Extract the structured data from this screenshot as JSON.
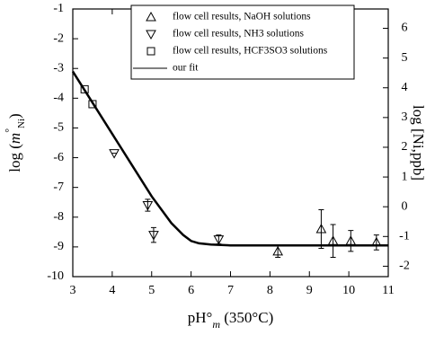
{
  "chart_data": {
    "type": "scatter",
    "x_label": [
      "pH°",
      "m",
      " (350°C)"
    ],
    "y_label": [
      "log (",
      "m",
      "°",
      "Ni",
      ")"
    ],
    "y2_label": "log [Ni,ppb]",
    "xlim": [
      3,
      11
    ],
    "xticks": [
      3,
      4,
      5,
      6,
      7,
      8,
      9,
      10,
      11
    ],
    "ylim": [
      -10,
      -1
    ],
    "yticks": [
      -10,
      -9,
      -8,
      -7,
      -6,
      -5,
      -4,
      -3,
      -2,
      -1
    ],
    "y2lim": [
      -2.35,
      6.65
    ],
    "y2ticks": [
      -2,
      -1,
      0,
      1,
      2,
      3,
      4,
      5,
      6
    ],
    "legend": "top-right",
    "series": [
      {
        "name": "flow cell results, NaOH solutions",
        "marker": "triangle-up",
        "color": "#000000",
        "x": [
          8.2,
          9.3,
          9.6,
          10.05,
          10.7
        ],
        "values": [
          -9.15,
          -8.4,
          -8.8,
          -8.8,
          -8.85
        ],
        "errors": [
          0.2,
          0.65,
          0.55,
          0.35,
          0.25
        ]
      },
      {
        "name": "flow cell results, NH3 solutions",
        "marker": "triangle-down",
        "color": "#000000",
        "x": [
          4.05,
          4.9,
          5.05,
          6.7
        ],
        "values": [
          -5.85,
          -7.6,
          -8.6,
          -8.75
        ],
        "errors": [
          0,
          0.2,
          0.25,
          0.15
        ]
      },
      {
        "name": "flow cell results, HCF3SO3 solutions",
        "marker": "square",
        "color": "#000000",
        "x": [
          3.3,
          3.5
        ],
        "values": [
          -3.7,
          -4.2
        ]
      },
      {
        "name": "our fit",
        "marker": "line",
        "color": "#000000",
        "x": [
          3,
          3.5,
          4,
          4.5,
          5,
          5.5,
          5.8,
          6,
          6.2,
          6.5,
          7,
          8,
          9,
          10,
          11
        ],
        "values": [
          -3.1,
          -4.15,
          -5.2,
          -6.25,
          -7.3,
          -8.2,
          -8.6,
          -8.8,
          -8.88,
          -8.92,
          -8.95,
          -8.95,
          -8.95,
          -8.95,
          -8.95
        ]
      }
    ]
  }
}
